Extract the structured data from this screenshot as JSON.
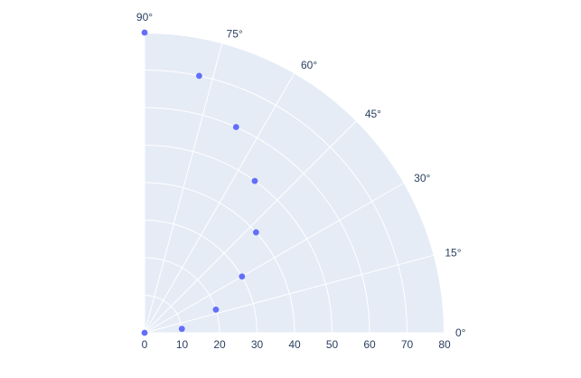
{
  "chart_data": {
    "type": "scatter",
    "subtype": "polar",
    "sector_degrees": [
      0,
      90
    ],
    "radial_range": [
      0,
      80
    ],
    "radial_ticks": [
      0,
      10,
      20,
      30,
      40,
      50,
      60,
      70,
      80
    ],
    "angular_ticks": [
      0,
      15,
      30,
      45,
      60,
      75,
      90
    ],
    "angular_tick_suffix": "°",
    "grid": true,
    "colors": {
      "marker": "#636efa",
      "plot_background": "#e5ecf6",
      "grid": "#ffffff",
      "text": "#2a3f5f"
    },
    "series": [
      {
        "points": [
          {
            "r": 0,
            "theta": 0
          },
          {
            "r": 10,
            "theta": 6
          },
          {
            "r": 20,
            "theta": 18
          },
          {
            "r": 30,
            "theta": 30
          },
          {
            "r": 40,
            "theta": 42
          },
          {
            "r": 50,
            "theta": 54
          },
          {
            "r": 60,
            "theta": 66
          },
          {
            "r": 70,
            "theta": 78
          },
          {
            "r": 80,
            "theta": 90
          }
        ]
      }
    ]
  }
}
